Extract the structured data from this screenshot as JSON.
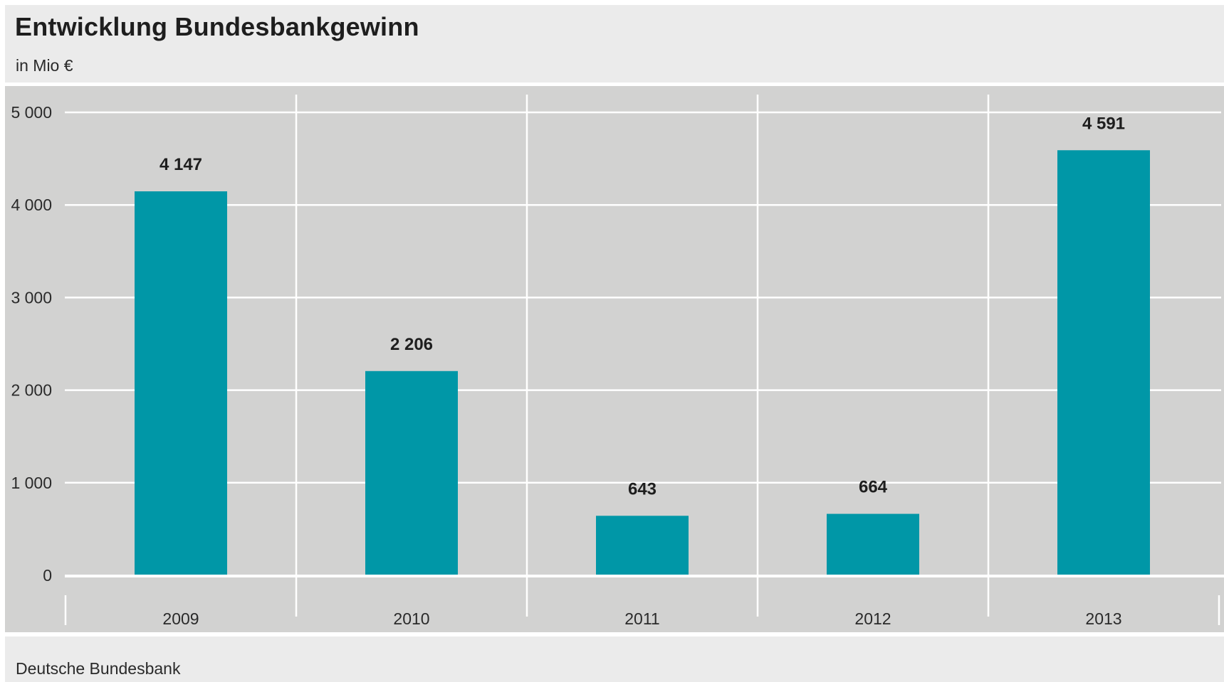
{
  "header": {
    "title": "Entwicklung Bundesbankgewinn",
    "subtitle": "in Mio €"
  },
  "footer": {
    "source": "Deutsche Bundesbank"
  },
  "colors": {
    "bar": "#0097a7",
    "panel_background": "#d2d2d1",
    "header_background": "#ebebeb",
    "grid": "#ffffff",
    "text": "#1e1e1e"
  },
  "chart_data": {
    "type": "bar",
    "title": "Entwicklung Bundesbankgewinn",
    "subtitle": "in Mio €",
    "categories": [
      "2009",
      "2010",
      "2011",
      "2012",
      "2013"
    ],
    "values": [
      4147,
      2206,
      643,
      664,
      4591
    ],
    "value_labels": [
      "4 147",
      "2 206",
      "643",
      "664",
      "4 591"
    ],
    "ylim": [
      0,
      5000
    ],
    "yticks": [
      0,
      1000,
      2000,
      3000,
      4000,
      5000
    ],
    "ytick_labels": [
      "0",
      "1 000",
      "2 000",
      "3 000",
      "4 000",
      "5 000"
    ],
    "grid": true,
    "legend": "none",
    "source": "Deutsche Bundesbank"
  }
}
